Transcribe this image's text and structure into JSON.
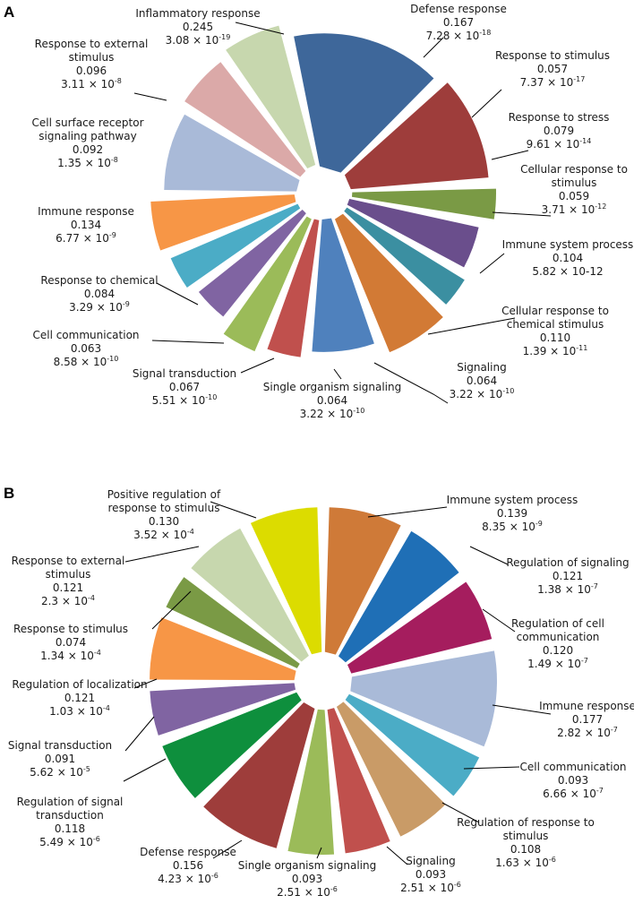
{
  "chart_data": [
    {
      "panel": "A",
      "type": "pie",
      "slices": [
        {
          "label": "Inflammatory response",
          "label_lines": [
            "Inflammatory response"
          ],
          "value": 0.245,
          "pvalue": "3.08 × 10",
          "pexp": "-19",
          "color": "#3E679A"
        },
        {
          "label": "Defense response",
          "label_lines": [
            "Defense response"
          ],
          "value": 0.167,
          "pvalue": "7.28 × 10",
          "pexp": "-18",
          "color": "#9E3D3B"
        },
        {
          "label": "Response to stimulus",
          "label_lines": [
            "Response to stimulus"
          ],
          "value": 0.057,
          "pvalue": "7.37 × 10",
          "pexp": "-17",
          "color": "#7A9A45"
        },
        {
          "label": "Response to stress",
          "label_lines": [
            "Response to stress"
          ],
          "value": 0.079,
          "pvalue": "9.61 × 10",
          "pexp": "-14",
          "color": "#6A4E8C"
        },
        {
          "label": "Cellular response to stimulus",
          "label_lines": [
            "Cellular response to",
            "stimulus"
          ],
          "value": 0.059,
          "pvalue": "3.71 × 10",
          "pexp": "-12",
          "color": "#3B8FA1"
        },
        {
          "label": "Immune system process",
          "label_lines": [
            "Immune system process"
          ],
          "value": 0.104,
          "pvalue": "5.82 × 10-12",
          "pexp": "",
          "color": "#D27A35"
        },
        {
          "label": "Cellular response to chemical stimulus",
          "label_lines": [
            "Cellular response to",
            "chemical stimulus"
          ],
          "value": 0.11,
          "pvalue": "1.39 × 10",
          "pexp": "-11",
          "color": "#4F81BD"
        },
        {
          "label": "Signaling",
          "label_lines": [
            "Signaling"
          ],
          "value": 0.064,
          "pvalue": "3.22 × 10",
          "pexp": "-10",
          "color": "#C0504D"
        },
        {
          "label": "Single organism signaling",
          "label_lines": [
            "Single organism signaling"
          ],
          "value": 0.064,
          "pvalue": "3.22 × 10",
          "pexp": "-10",
          "color": "#9BBB59"
        },
        {
          "label": "Signal transduction",
          "label_lines": [
            "Signal transduction"
          ],
          "value": 0.067,
          "pvalue": "5.51 × 10",
          "pexp": "-10",
          "color": "#8064A2"
        },
        {
          "label": "Cell communication",
          "label_lines": [
            "Cell communication"
          ],
          "value": 0.063,
          "pvalue": "8.58 × 10",
          "pexp": "-10",
          "color": "#4BACC6"
        },
        {
          "label": "Response to chemical",
          "label_lines": [
            "Response to chemical"
          ],
          "value": 0.084,
          "pvalue": "3.29 × 10",
          "pexp": "-9",
          "color": "#F79646"
        },
        {
          "label": "Immune response",
          "label_lines": [
            "Immune response"
          ],
          "value": 0.134,
          "pvalue": "6.77 × 10",
          "pexp": "-9",
          "color": "#A9BAD8"
        },
        {
          "label": "Cell surface receptor signaling pathway",
          "label_lines": [
            "Cell surface receptor",
            "signaling pathway"
          ],
          "value": 0.092,
          "pvalue": "1.35 × 10",
          "pexp": "-8",
          "color": "#DBA9A8"
        },
        {
          "label": "Response to external stimulus",
          "label_lines": [
            "Response to external",
            "stimulus"
          ],
          "value": 0.096,
          "pvalue": "3.11 × 10",
          "pexp": "-8",
          "color": "#C7D7AE"
        }
      ]
    },
    {
      "panel": "B",
      "type": "pie",
      "slices": [
        {
          "label": "Immune system process",
          "label_lines": [
            "Immune system process"
          ],
          "value": 0.139,
          "pvalue": "8.35 × 10",
          "pexp": "-9",
          "color": "#CF7A38"
        },
        {
          "label": "Regulation of signaling",
          "label_lines": [
            "Regulation of signaling"
          ],
          "value": 0.121,
          "pvalue": "1.38 × 10",
          "pexp": "-7",
          "color": "#1F6FB6"
        },
        {
          "label": "Regulation of cell communication",
          "label_lines": [
            "Regulation of cell",
            "communication"
          ],
          "value": 0.12,
          "pvalue": "1.49 × 10",
          "pexp": "-7",
          "color": "#A51D5E"
        },
        {
          "label": "Immune response",
          "label_lines": [
            "Immune response"
          ],
          "value": 0.177,
          "pvalue": "2.82 × 10",
          "pexp": "-7",
          "color": "#A9BAD8"
        },
        {
          "label": "Cell communication",
          "label_lines": [
            "Cell communication"
          ],
          "value": 0.093,
          "pvalue": "6.66 × 10",
          "pexp": "-7",
          "color": "#4BACC6"
        },
        {
          "label": "Regulation of response to stimulus",
          "label_lines": [
            "Regulation of response to",
            "stimulus"
          ],
          "value": 0.108,
          "pvalue": "1.63 × 10",
          "pexp": "-6",
          "color": "#C99B67"
        },
        {
          "label": "Signaling",
          "label_lines": [
            "Signaling"
          ],
          "value": 0.093,
          "pvalue": "2.51 × 10",
          "pexp": "-6",
          "color": "#C0504D"
        },
        {
          "label": "Single organism signaling",
          "label_lines": [
            "Single organism signaling"
          ],
          "value": 0.093,
          "pvalue": "2.51 × 10",
          "pexp": "-6",
          "color": "#9BBB59"
        },
        {
          "label": "Defense response",
          "label_lines": [
            "Defense response"
          ],
          "value": 0.156,
          "pvalue": "4.23 × 10",
          "pexp": "-6",
          "color": "#9E3D3B"
        },
        {
          "label": "Regulation of signal transduction",
          "label_lines": [
            "Regulation of signal",
            "transduction"
          ],
          "value": 0.118,
          "pvalue": "5.49 × 10",
          "pexp": "-6",
          "color": "#0E8F3D"
        },
        {
          "label": "Signal transduction",
          "label_lines": [
            "Signal transduction"
          ],
          "value": 0.091,
          "pvalue": "5.62 × 10",
          "pexp": "-5",
          "color": "#8064A2"
        },
        {
          "label": "Regulation of localization",
          "label_lines": [
            "Regulation of localization"
          ],
          "value": 0.121,
          "pvalue": "1.03 × 10",
          "pexp": "-4",
          "color": "#F79646"
        },
        {
          "label": "Response to stimulus",
          "label_lines": [
            "Response to stimulus"
          ],
          "value": 0.074,
          "pvalue": "1.34 × 10",
          "pexp": "-4",
          "color": "#7A9A45"
        },
        {
          "label": "Response to external stimulus",
          "label_lines": [
            "Response to external",
            "stimulus"
          ],
          "value": 0.121,
          "pvalue": "2.3 × 10",
          "pexp": "-4",
          "color": "#C7D7AE"
        },
        {
          "label": "Positive regulation of response to stimulus",
          "label_lines": [
            "Positive regulation of",
            "response to stimulus"
          ],
          "value": 0.13,
          "pvalue": "3.52 × 10",
          "pexp": "-4",
          "color": "#DCDC00"
        }
      ]
    }
  ]
}
